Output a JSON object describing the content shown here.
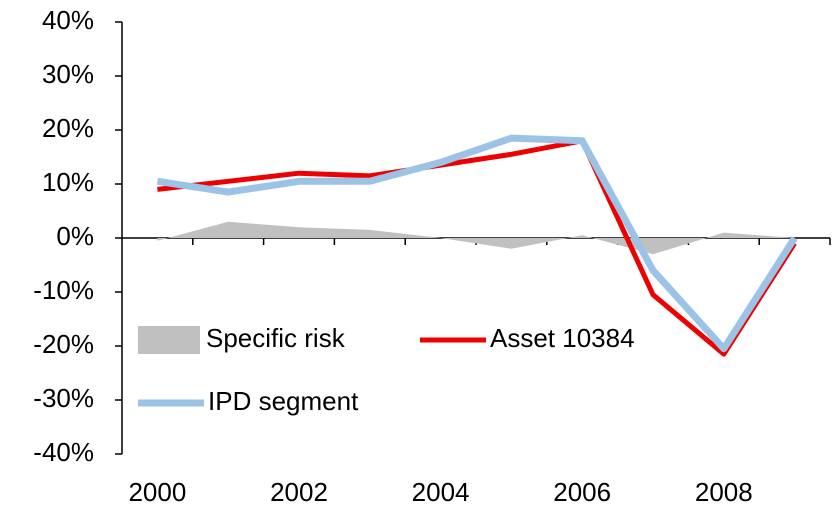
{
  "chart_data": {
    "type": "line",
    "categories": [
      "2000",
      null,
      "2002",
      null,
      "2004",
      null,
      "2006",
      null,
      "2008",
      null
    ],
    "series": [
      {
        "name": "Specific risk",
        "color": "#c0c0c0",
        "fill": "area",
        "values": [
          -0.5,
          3,
          2,
          1.5,
          0,
          -2,
          0.5,
          -3,
          1,
          0
        ]
      },
      {
        "name": "Asset 10384",
        "color": "#ee0000",
        "values": [
          9,
          10.5,
          12,
          11.5,
          13.5,
          15.5,
          18,
          -10.5,
          -21.5,
          -1
        ]
      },
      {
        "name": "IPD segment",
        "color": "#9cc3e6",
        "values": [
          10.5,
          8.5,
          10.5,
          10.5,
          14,
          18.5,
          18,
          -6,
          -20.5,
          0
        ]
      }
    ],
    "ylim": [
      -40,
      40
    ],
    "yticks": [
      {
        "value": -40,
        "label": "-40%"
      },
      {
        "value": -30,
        "label": "-30%"
      },
      {
        "value": -20,
        "label": "-20%"
      },
      {
        "value": -10,
        "label": "-10%"
      },
      {
        "value": 0,
        "label": "0%"
      },
      {
        "value": 10,
        "label": "10%"
      },
      {
        "value": 20,
        "label": "20%"
      },
      {
        "value": 30,
        "label": "30%"
      },
      {
        "value": 40,
        "label": "40%"
      }
    ],
    "legend": "lower-left"
  }
}
